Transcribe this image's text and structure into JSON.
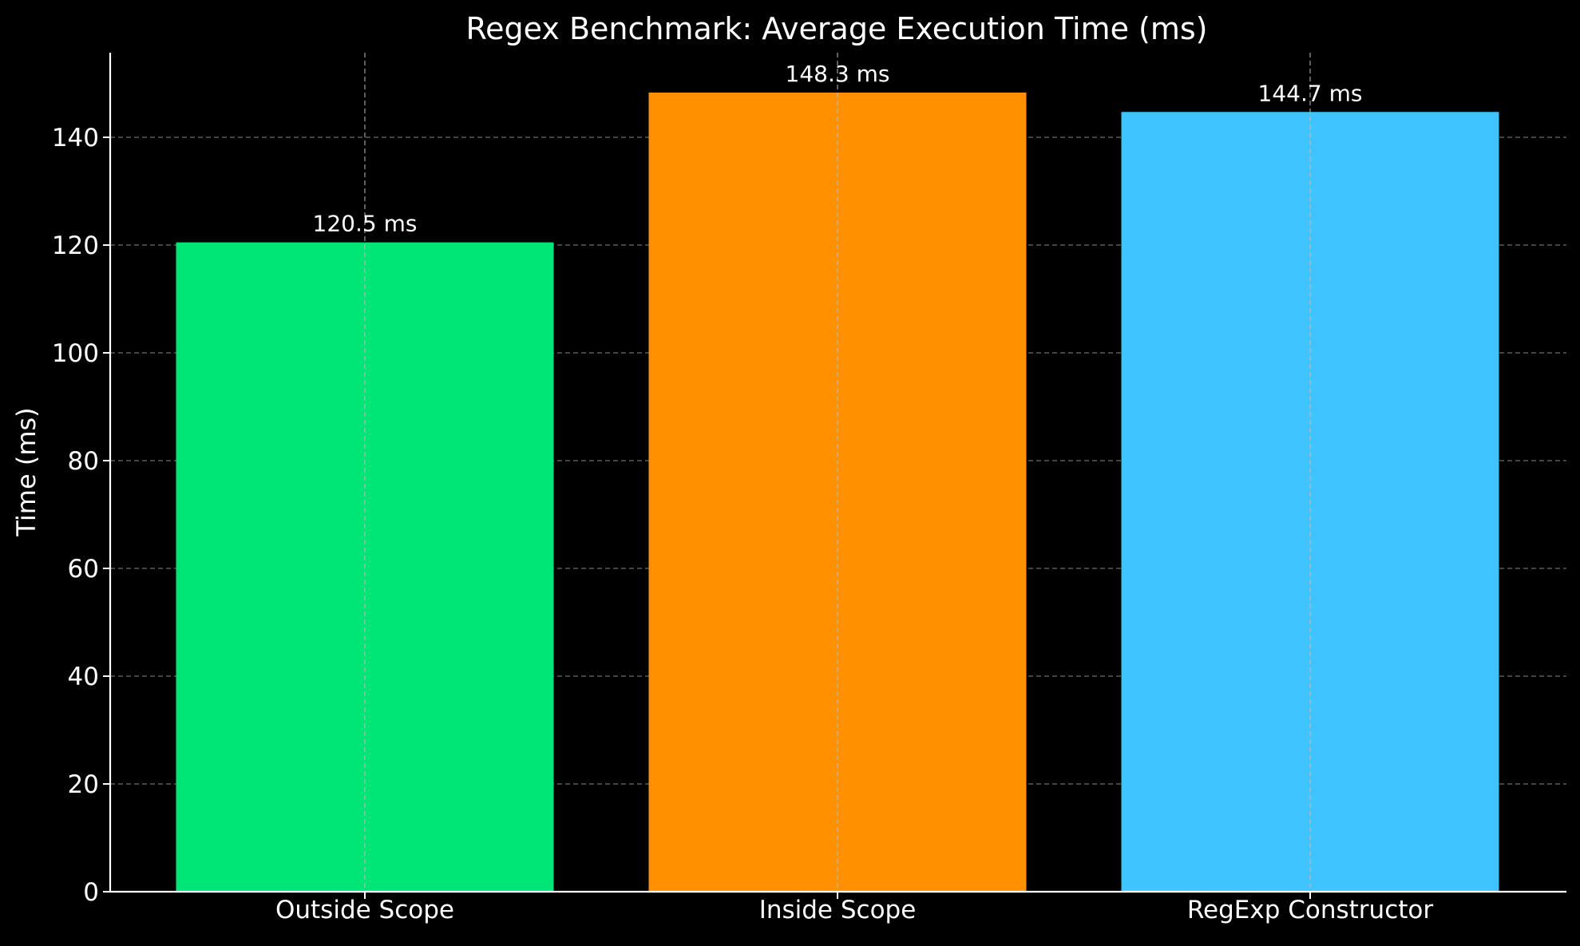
{
  "chart_data": {
    "type": "bar",
    "title": "Regex Benchmark: Average Execution Time (ms)",
    "xlabel": "",
    "ylabel": "Time (ms)",
    "categories": [
      "Outside Scope",
      "Inside Scope",
      "RegExp Constructor"
    ],
    "values": [
      120.5,
      148.3,
      144.7
    ],
    "data_labels": [
      "120.5 ms",
      "148.3 ms",
      "144.7 ms"
    ],
    "colors": [
      "#00e676",
      "#ff9100",
      "#40c4ff"
    ],
    "ylim": [
      0,
      155.7
    ],
    "yticks": [
      0,
      20,
      40,
      60,
      80,
      100,
      120,
      140
    ],
    "grid": true,
    "background": "#000000",
    "axis_color": "#ffffff",
    "grid_color": "#888888"
  }
}
